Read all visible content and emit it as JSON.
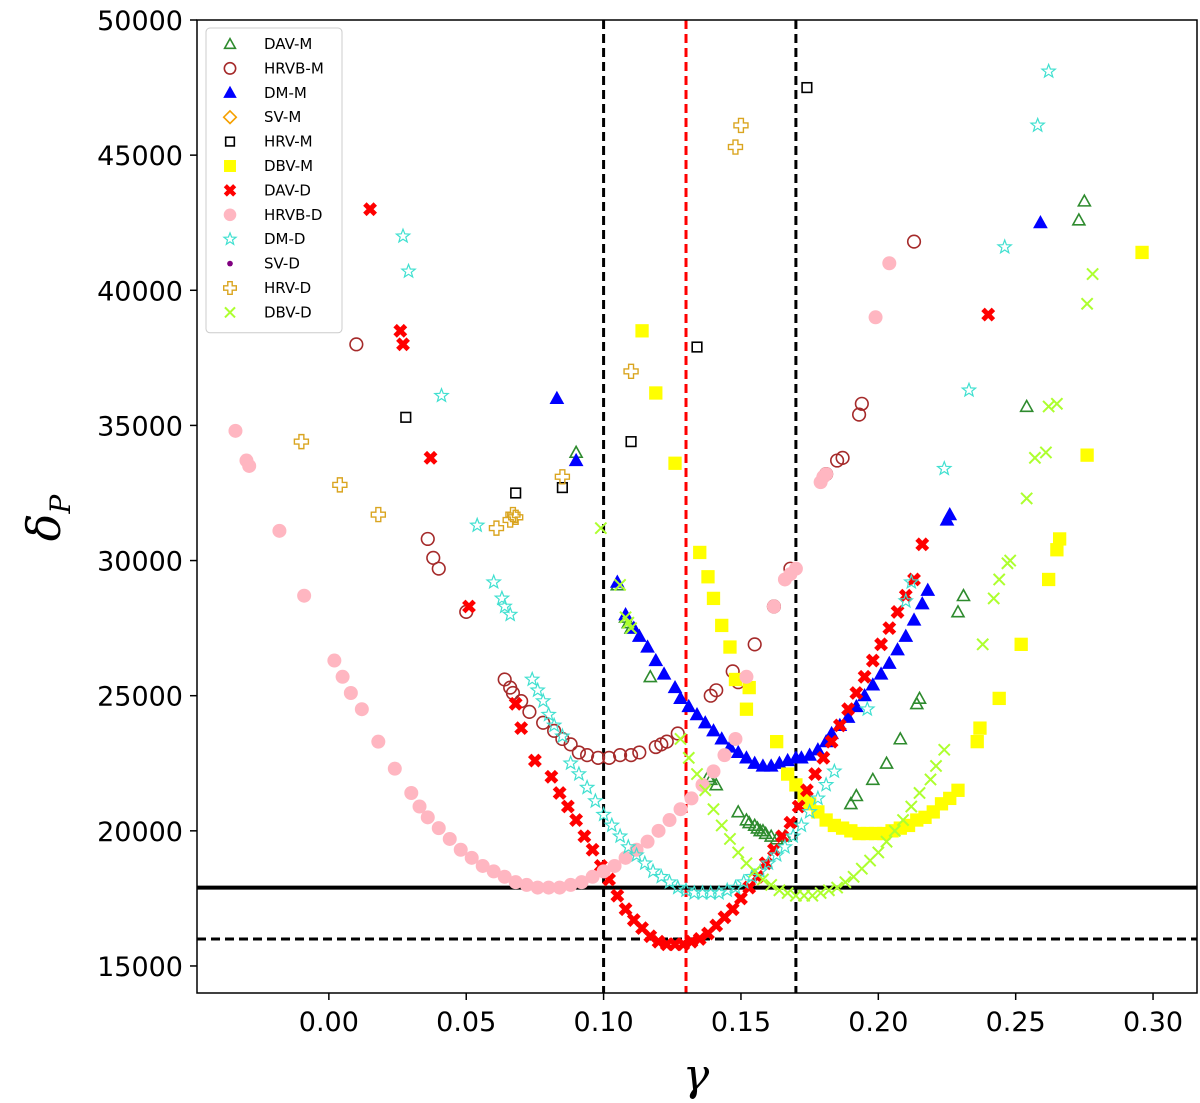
{
  "chart_data": {
    "type": "scatter",
    "xlabel": "γ",
    "ylabel_main": "δ",
    "ylabel_sub": "P",
    "xlim": [
      -0.048,
      0.316
    ],
    "ylim": [
      14000,
      50000
    ],
    "xticks": [
      0.0,
      0.05,
      0.1,
      0.15,
      0.2,
      0.25,
      0.3
    ],
    "xtick_labels": [
      "0.00",
      "0.05",
      "0.10",
      "0.15",
      "0.20",
      "0.25",
      "0.30"
    ],
    "yticks": [
      15000,
      20000,
      25000,
      30000,
      35000,
      40000,
      45000,
      50000
    ],
    "ytick_labels": [
      "15000",
      "20000",
      "25000",
      "30000",
      "35000",
      "40000",
      "45000",
      "50000"
    ],
    "legend_position": "top-left",
    "reference_lines": [
      {
        "orientation": "vertical",
        "value": 0.1,
        "style": "dashed",
        "color": "#000000"
      },
      {
        "orientation": "vertical",
        "value": 0.13,
        "style": "dashed",
        "color": "#ff0000"
      },
      {
        "orientation": "vertical",
        "value": 0.17,
        "style": "dashed",
        "color": "#000000"
      },
      {
        "orientation": "horizontal",
        "value": 17900,
        "style": "solid",
        "color": "#000000"
      },
      {
        "orientation": "horizontal",
        "value": 16000,
        "style": "dashed",
        "color": "#000000"
      }
    ],
    "series": [
      {
        "name": "DAV-M",
        "marker": "triangle-open",
        "color": "#2e8b2e",
        "x": [
          0.09,
          0.105,
          0.108,
          0.109,
          0.11,
          0.117,
          0.138,
          0.139,
          0.141,
          0.149,
          0.152,
          0.153,
          0.155,
          0.156,
          0.157,
          0.158,
          0.159,
          0.161,
          0.163,
          0.166,
          0.19,
          0.192,
          0.198,
          0.203,
          0.208,
          0.214,
          0.215,
          0.229,
          0.231,
          0.254,
          0.273,
          0.275
        ],
        "y": [
          34000,
          29100,
          27900,
          27700,
          27500,
          25700,
          22000,
          21900,
          21700,
          20700,
          20400,
          20300,
          20200,
          20100,
          20000,
          20000,
          19900,
          19800,
          19700,
          19800,
          21000,
          21300,
          21900,
          22500,
          23400,
          24700,
          24900,
          28100,
          28700,
          35700,
          42600,
          43300
        ]
      },
      {
        "name": "HRVB-M",
        "marker": "circle-open",
        "color": "#a52a2a",
        "x": [
          0.01,
          0.036,
          0.038,
          0.04,
          0.05,
          0.064,
          0.066,
          0.067,
          0.07,
          0.073,
          0.078,
          0.082,
          0.085,
          0.088,
          0.091,
          0.094,
          0.098,
          0.102,
          0.106,
          0.11,
          0.113,
          0.119,
          0.121,
          0.123,
          0.127,
          0.139,
          0.141,
          0.147,
          0.149,
          0.155,
          0.162,
          0.168,
          0.181,
          0.185,
          0.187,
          0.193,
          0.194,
          0.213
        ],
        "y": [
          38000,
          30800,
          30100,
          29700,
          28100,
          25600,
          25300,
          25100,
          24800,
          24400,
          24000,
          23700,
          23400,
          23200,
          22900,
          22800,
          22700,
          22700,
          22800,
          22800,
          22900,
          23100,
          23200,
          23300,
          23600,
          25000,
          25200,
          25900,
          25500,
          26900,
          28300,
          29700,
          33200,
          33700,
          33800,
          35400,
          35800,
          41800
        ]
      },
      {
        "name": "DM-M",
        "marker": "triangle-filled",
        "color": "#0000ff",
        "x": [
          0.083,
          0.09,
          0.105,
          0.108,
          0.111,
          0.113,
          0.116,
          0.119,
          0.122,
          0.126,
          0.128,
          0.131,
          0.134,
          0.137,
          0.14,
          0.143,
          0.146,
          0.149,
          0.152,
          0.155,
          0.158,
          0.161,
          0.164,
          0.167,
          0.17,
          0.172,
          0.175,
          0.178,
          0.181,
          0.183,
          0.186,
          0.189,
          0.192,
          0.195,
          0.198,
          0.201,
          0.204,
          0.207,
          0.21,
          0.213,
          0.216,
          0.218,
          0.225,
          0.226,
          0.259
        ],
        "y": [
          36000,
          33700,
          29200,
          28000,
          27500,
          27200,
          26800,
          26300,
          25800,
          25300,
          24900,
          24600,
          24300,
          24000,
          23700,
          23400,
          23100,
          22900,
          22700,
          22500,
          22400,
          22400,
          22500,
          22600,
          22700,
          22700,
          22800,
          23000,
          23300,
          23600,
          23900,
          24200,
          24600,
          25000,
          25400,
          25800,
          26200,
          26700,
          27200,
          27800,
          28400,
          28900,
          31500,
          31700,
          42500
        ]
      },
      {
        "name": "SV-M",
        "marker": "diamond-open",
        "color": "#f5a000",
        "x": [],
        "y": []
      },
      {
        "name": "HRV-M",
        "marker": "square-open",
        "color": "#000000",
        "x": [
          0.028,
          0.068,
          0.085,
          0.11,
          0.134,
          0.174
        ],
        "y": [
          35300,
          32500,
          32700,
          34400,
          37900,
          47500
        ]
      },
      {
        "name": "DBV-M",
        "marker": "square-filled",
        "color": "#ffff00",
        "x": [
          0.114,
          0.119,
          0.126,
          0.135,
          0.138,
          0.14,
          0.143,
          0.146,
          0.148,
          0.152,
          0.153,
          0.163,
          0.167,
          0.17,
          0.173,
          0.175,
          0.178,
          0.181,
          0.184,
          0.187,
          0.19,
          0.193,
          0.196,
          0.199,
          0.202,
          0.205,
          0.208,
          0.211,
          0.214,
          0.217,
          0.22,
          0.223,
          0.226,
          0.229,
          0.236,
          0.237,
          0.244,
          0.252,
          0.262,
          0.265,
          0.266,
          0.276,
          0.296
        ],
        "y": [
          38500,
          36200,
          33600,
          30300,
          29400,
          28600,
          27600,
          26800,
          25600,
          24500,
          25300,
          23300,
          22100,
          21700,
          21300,
          21000,
          20700,
          20400,
          20200,
          20100,
          20000,
          19900,
          19900,
          19900,
          19900,
          20000,
          20100,
          20200,
          20400,
          20500,
          20700,
          21000,
          21200,
          21500,
          23300,
          23800,
          24900,
          26900,
          29300,
          30400,
          30800,
          33900,
          41400
        ]
      },
      {
        "name": "DAV-D",
        "marker": "x-filled",
        "color": "#ff0000",
        "x": [
          0.015,
          0.026,
          0.027,
          0.037,
          0.051,
          0.068,
          0.07,
          0.075,
          0.081,
          0.084,
          0.087,
          0.09,
          0.093,
          0.096,
          0.099,
          0.102,
          0.105,
          0.108,
          0.111,
          0.114,
          0.117,
          0.12,
          0.123,
          0.126,
          0.129,
          0.132,
          0.135,
          0.138,
          0.141,
          0.144,
          0.147,
          0.15,
          0.153,
          0.156,
          0.159,
          0.162,
          0.165,
          0.168,
          0.171,
          0.174,
          0.177,
          0.18,
          0.183,
          0.186,
          0.189,
          0.192,
          0.195,
          0.198,
          0.201,
          0.204,
          0.207,
          0.21,
          0.213,
          0.216,
          0.24
        ],
        "y": [
          43000,
          38500,
          38000,
          33800,
          28300,
          24700,
          23800,
          22600,
          22000,
          21400,
          20900,
          20400,
          19800,
          19300,
          18700,
          18200,
          17600,
          17100,
          16700,
          16400,
          16100,
          15900,
          15800,
          15800,
          15800,
          15900,
          16000,
          16200,
          16500,
          16800,
          17100,
          17500,
          17900,
          18300,
          18800,
          19300,
          19800,
          20300,
          20900,
          21500,
          22100,
          22700,
          23300,
          23900,
          24500,
          25100,
          25700,
          26300,
          26900,
          27500,
          28100,
          28700,
          29300,
          30600,
          39100
        ]
      },
      {
        "name": "HRVB-D",
        "marker": "circle-filled",
        "color": "#ffb6c1",
        "x": [
          -0.034,
          -0.03,
          -0.029,
          -0.018,
          -0.009,
          0.002,
          0.005,
          0.008,
          0.012,
          0.018,
          0.024,
          0.03,
          0.033,
          0.036,
          0.04,
          0.044,
          0.048,
          0.052,
          0.056,
          0.06,
          0.064,
          0.068,
          0.072,
          0.076,
          0.08,
          0.084,
          0.088,
          0.092,
          0.096,
          0.1,
          0.104,
          0.108,
          0.112,
          0.116,
          0.12,
          0.124,
          0.128,
          0.132,
          0.136,
          0.14,
          0.144,
          0.148,
          0.152,
          0.162,
          0.166,
          0.168,
          0.17,
          0.179,
          0.18,
          0.181,
          0.199,
          0.204
        ],
        "y": [
          34800,
          33700,
          33500,
          31100,
          28700,
          26300,
          25700,
          25100,
          24500,
          23300,
          22300,
          21400,
          20900,
          20500,
          20100,
          19700,
          19300,
          19000,
          18700,
          18500,
          18300,
          18100,
          18000,
          17900,
          17900,
          17900,
          18000,
          18100,
          18300,
          18500,
          18700,
          19000,
          19300,
          19600,
          20000,
          20400,
          20800,
          21200,
          21700,
          22200,
          22800,
          23400,
          25700,
          28300,
          29300,
          29500,
          29700,
          32900,
          33100,
          33200,
          39000,
          41000
        ]
      },
      {
        "name": "DM-D",
        "marker": "star-open",
        "color": "#40e0d0",
        "x": [
          0.027,
          0.029,
          0.041,
          0.054,
          0.06,
          0.063,
          0.064,
          0.066,
          0.074,
          0.076,
          0.078,
          0.08,
          0.082,
          0.085,
          0.088,
          0.091,
          0.094,
          0.097,
          0.1,
          0.103,
          0.106,
          0.109,
          0.112,
          0.115,
          0.118,
          0.121,
          0.124,
          0.127,
          0.13,
          0.133,
          0.136,
          0.139,
          0.142,
          0.145,
          0.148,
          0.151,
          0.154,
          0.157,
          0.16,
          0.163,
          0.166,
          0.169,
          0.172,
          0.175,
          0.178,
          0.181,
          0.184,
          0.196,
          0.21,
          0.212,
          0.224,
          0.233,
          0.246,
          0.258,
          0.262
        ],
        "y": [
          42000,
          40700,
          36100,
          31300,
          29200,
          28600,
          28300,
          28000,
          25600,
          25200,
          24800,
          24300,
          23900,
          23500,
          22500,
          22100,
          21600,
          21100,
          20600,
          20200,
          19800,
          19400,
          19100,
          18800,
          18500,
          18300,
          18100,
          17900,
          17800,
          17700,
          17700,
          17700,
          17700,
          17800,
          17900,
          18100,
          18300,
          18500,
          18800,
          19100,
          19400,
          19800,
          20200,
          20700,
          21200,
          21700,
          22200,
          24500,
          28500,
          29200,
          33400,
          36300,
          41600,
          46100,
          48100
        ]
      },
      {
        "name": "SV-D",
        "marker": "circle-small",
        "color": "#800080",
        "x": [],
        "y": []
      },
      {
        "name": "HRV-D",
        "marker": "plus-open",
        "color": "#daa520",
        "x": [
          -0.01,
          0.004,
          0.018,
          0.061,
          0.066,
          0.067,
          0.068,
          0.085,
          0.11,
          0.148,
          0.15
        ],
        "y": [
          34400,
          32800,
          31700,
          31200,
          31500,
          31700,
          31600,
          33100,
          37000,
          45300,
          46100
        ]
      },
      {
        "name": "DBV-D",
        "marker": "x-thin",
        "color": "#adff2f",
        "x": [
          0.099,
          0.106,
          0.108,
          0.109,
          0.11,
          0.128,
          0.131,
          0.134,
          0.137,
          0.14,
          0.143,
          0.146,
          0.149,
          0.152,
          0.155,
          0.158,
          0.161,
          0.164,
          0.167,
          0.17,
          0.173,
          0.176,
          0.179,
          0.182,
          0.185,
          0.188,
          0.191,
          0.194,
          0.197,
          0.2,
          0.203,
          0.206,
          0.209,
          0.212,
          0.215,
          0.219,
          0.221,
          0.224,
          0.238,
          0.242,
          0.244,
          0.247,
          0.248,
          0.254,
          0.257,
          0.261,
          0.262,
          0.265,
          0.276,
          0.278
        ],
        "y": [
          31200,
          29100,
          27900,
          27700,
          27500,
          23400,
          22700,
          22100,
          21500,
          20800,
          20200,
          19700,
          19200,
          18800,
          18500,
          18200,
          18000,
          17800,
          17700,
          17600,
          17600,
          17600,
          17700,
          17800,
          17900,
          18100,
          18300,
          18600,
          18900,
          19200,
          19600,
          20000,
          20400,
          20900,
          21400,
          21900,
          22400,
          23000,
          26900,
          28600,
          29300,
          29900,
          30000,
          32300,
          33800,
          34000,
          35700,
          35800,
          39500,
          40600
        ]
      }
    ]
  }
}
